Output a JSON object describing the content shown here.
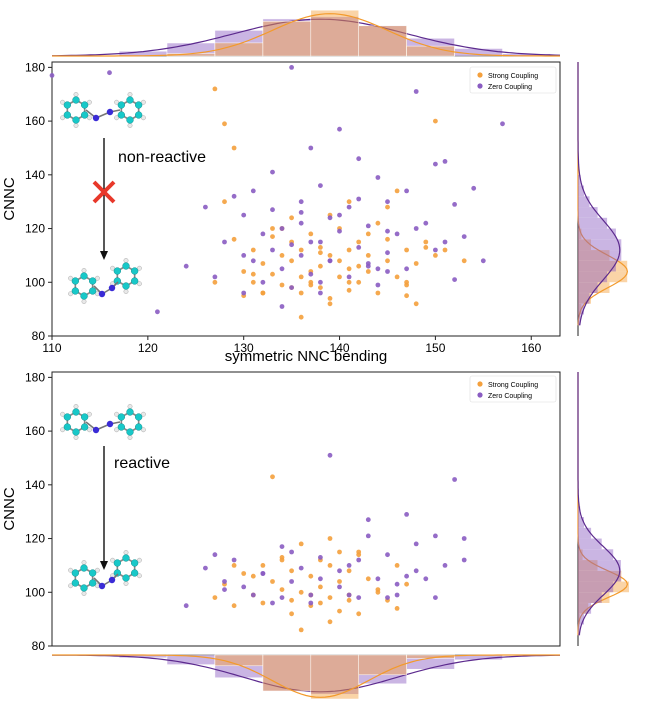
{
  "colors": {
    "strong": "#f4a03c",
    "zero": "#8a5cc2",
    "strong_kde": "#f39a2b",
    "zero_kde": "#5c2a8e",
    "cross": "#e8382a",
    "atom_c": "#18c8c8",
    "atom_n": "#3a2bd6",
    "atom_h": "#e8e8e8"
  },
  "chart_data": [
    {
      "type": "scatter",
      "panel": "top",
      "xlabel": "symmetric NNC bending",
      "ylabel": "CNNC",
      "xlim": [
        110,
        163
      ],
      "ylim": [
        80,
        182
      ],
      "xticks": [
        "110",
        "120",
        "130",
        "140",
        "150",
        "160"
      ],
      "yticks": [
        "80",
        "100",
        "120",
        "140",
        "160",
        "180"
      ],
      "legend": {
        "position": "top-right",
        "entries": [
          "Strong Coupling",
          "Zero Coupling"
        ]
      },
      "annotation": "non-reactive",
      "series": [
        {
          "name": "Strong Coupling",
          "color_key": "strong",
          "x": [
            127,
            128,
            129,
            130,
            130,
            131,
            131,
            132,
            132,
            133,
            133,
            134,
            134,
            134,
            135,
            135,
            135,
            136,
            136,
            136,
            137,
            137,
            137,
            138,
            138,
            138,
            139,
            139,
            139,
            140,
            140,
            140,
            141,
            141,
            141,
            142,
            142,
            142,
            143,
            143,
            143,
            144,
            144,
            145,
            145,
            146,
            146,
            147,
            147,
            148,
            148,
            149,
            150,
            150,
            151,
            153,
            127,
            128,
            131,
            133,
            137,
            139,
            141,
            145,
            147,
            149,
            136,
            135,
            132,
            138,
            141,
            129,
            147
          ],
          "y": [
            172,
            159,
            150,
            104,
            95,
            112,
            100,
            96,
            107,
            117,
            103,
            110,
            99,
            120,
            98,
            108,
            115,
            102,
            96,
            112,
            104,
            118,
            100,
            106,
            98,
            113,
            94,
            110,
            125,
            102,
            120,
            108,
            97,
            112,
            130,
            106,
            115,
            100,
            118,
            104,
            110,
            96,
            122,
            108,
            116,
            102,
            134,
            99,
            112,
            107,
            92,
            115,
            110,
            160,
            112,
            108,
            100,
            130,
            103,
            120,
            99,
            92,
            105,
            128,
            100,
            113,
            87,
            124,
            96,
            111,
            100,
            116,
            95
          ],
          "marginal_y": {
            "peak": 104,
            "spread": 6
          }
        },
        {
          "name": "Zero Coupling",
          "color_key": "zero",
          "x": [
            110,
            116,
            121,
            124,
            126,
            127,
            128,
            129,
            130,
            130,
            131,
            132,
            132,
            133,
            133,
            134,
            134,
            135,
            135,
            136,
            136,
            136,
            137,
            137,
            138,
            138,
            138,
            139,
            139,
            140,
            140,
            141,
            141,
            142,
            142,
            143,
            143,
            144,
            144,
            145,
            145,
            146,
            147,
            148,
            149,
            150,
            151,
            152,
            153,
            154,
            155,
            157,
            131,
            135,
            138,
            140,
            143,
            145,
            147,
            150,
            152,
            130,
            133,
            137,
            139,
            142,
            145,
            148,
            151,
            134,
            136,
            144
          ],
          "y": [
            177,
            178,
            89,
            106,
            128,
            102,
            115,
            132,
            96,
            125,
            108,
            118,
            100,
            141,
            112,
            105,
            120,
            180,
            98,
            130,
            110,
            122,
            103,
            150,
            115,
            100,
            136,
            108,
            124,
            119,
            157,
            102,
            128,
            113,
            146,
            107,
            121,
            99,
            139,
            111,
            130,
            118,
            105,
            171,
            122,
            112,
            145,
            129,
            117,
            135,
            108,
            159,
            134,
            114,
            96,
            125,
            106,
            119,
            134,
            144,
            101,
            110,
            127,
            115,
            108,
            131,
            104,
            120,
            115,
            91,
            126,
            105
          ],
          "marginal_y": {
            "peak": 112,
            "spread": 11
          }
        }
      ]
    },
    {
      "type": "scatter",
      "panel": "bottom",
      "xlabel": "",
      "ylabel": "CNNC",
      "xlim": [
        110,
        163
      ],
      "ylim": [
        80,
        182
      ],
      "yticks": [
        "80",
        "100",
        "120",
        "140",
        "160",
        "180"
      ],
      "legend": {
        "position": "top-right",
        "entries": [
          "Strong Coupling",
          "Zero Coupling"
        ]
      },
      "annotation": "reactive",
      "series": [
        {
          "name": "Strong Coupling",
          "color_key": "strong",
          "x": [
            127,
            128,
            129,
            130,
            131,
            132,
            132,
            133,
            134,
            134,
            135,
            135,
            136,
            136,
            137,
            137,
            138,
            138,
            139,
            139,
            140,
            140,
            141,
            141,
            142,
            142,
            143,
            144,
            145,
            146,
            147,
            133,
            136,
            139,
            142,
            138,
            135,
            131,
            140,
            144,
            137,
            134,
            141,
            129,
            146,
            139
          ],
          "y": [
            98,
            103,
            95,
            107,
            99,
            110,
            96,
            104,
            101,
            113,
            97,
            108,
            100,
            118,
            95,
            106,
            102,
            112,
            98,
            110,
            104,
            93,
            108,
            99,
            114,
            92,
            105,
            101,
            97,
            110,
            103,
            143,
            86,
            89,
            115,
            96,
            92,
            106,
            115,
            100,
            99,
            112,
            97,
            110,
            94,
            120
          ],
          "marginal_y": {
            "peak": 103,
            "spread": 5
          }
        },
        {
          "name": "Zero Coupling",
          "color_key": "zero",
          "x": [
            124,
            127,
            128,
            129,
            131,
            132,
            133,
            134,
            135,
            136,
            137,
            138,
            139,
            140,
            141,
            142,
            143,
            144,
            145,
            146,
            147,
            148,
            149,
            150,
            151,
            152,
            153,
            126,
            130,
            134,
            138,
            142,
            146,
            150,
            137,
            143,
            148,
            132,
            140,
            145,
            128,
            135,
            141,
            147,
            153
          ],
          "y": [
            95,
            114,
            101,
            112,
            99,
            107,
            96,
            117,
            104,
            109,
            99,
            113,
            151,
            102,
            110,
            98,
            127,
            105,
            114,
            99,
            129,
            118,
            105,
            121,
            110,
            142,
            112,
            109,
            102,
            98,
            105,
            112,
            103,
            98,
            96,
            121,
            108,
            107,
            108,
            98,
            104,
            115,
            99,
            106,
            120
          ],
          "marginal_y": {
            "peak": 108,
            "spread": 9
          }
        }
      ],
      "marginal_x": {
        "strong": {
          "peak": 138,
          "spread": 5
        },
        "zero": {
          "peak": 138,
          "spread": 8
        }
      }
    }
  ],
  "top_marginal_x": {
    "strong": {
      "peak": 139,
      "spread": 6
    },
    "zero": {
      "peak": 138,
      "spread": 9
    }
  }
}
